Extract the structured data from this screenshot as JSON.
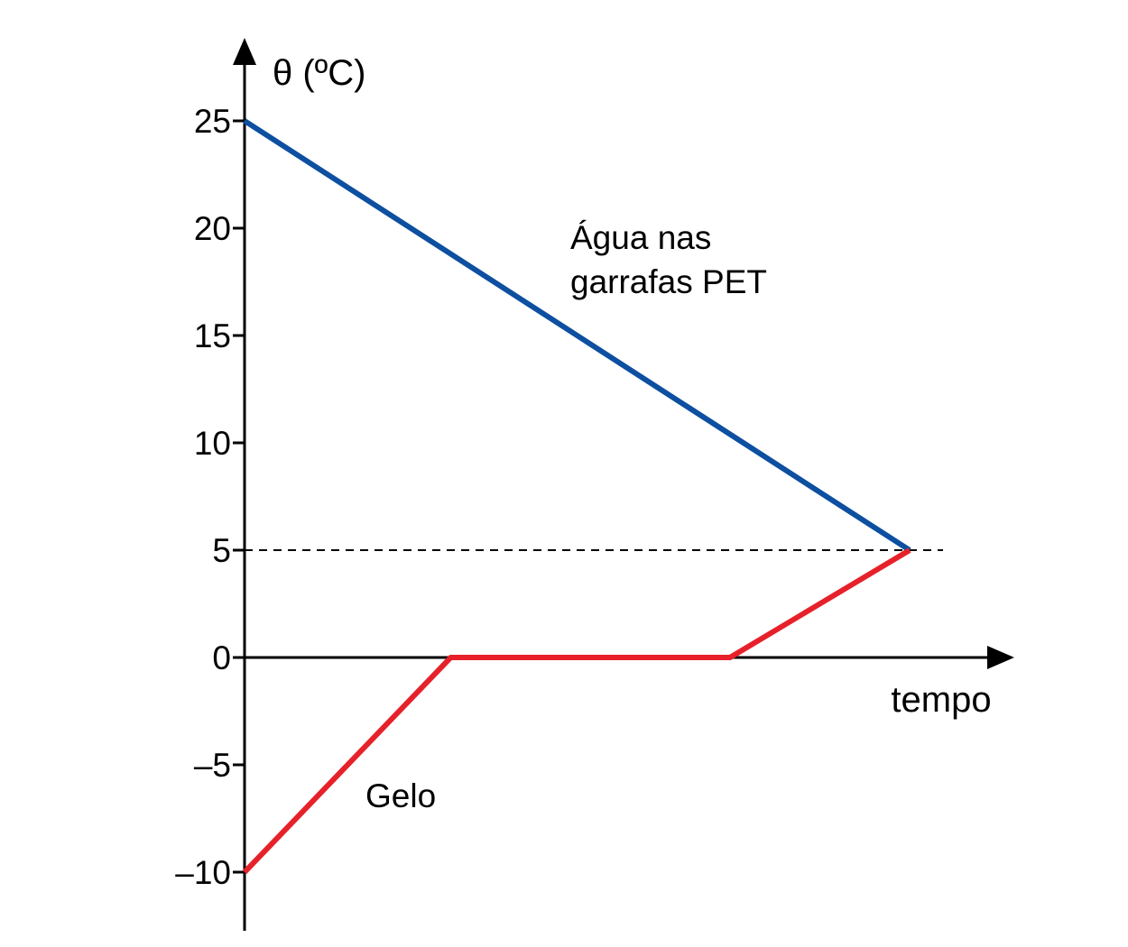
{
  "chart_data": {
    "type": "line",
    "title": "",
    "ylabel": "θ (ºC)",
    "xlabel": "tempo",
    "ylim": [
      -12,
      28
    ],
    "yticks": [
      25,
      20,
      15,
      10,
      5,
      0,
      -5,
      -10
    ],
    "ytick_labels": [
      "25",
      "20",
      "15",
      "10",
      "5",
      "0",
      "–5",
      "–10"
    ],
    "x_ticks_shown": false,
    "grid": false,
    "legend": "none",
    "reference_line": {
      "y": 5,
      "style": "dashed"
    },
    "series": [
      {
        "name": "Água nas garrafas PET",
        "label_lines": [
          "Água nas",
          "garrafas PET"
        ],
        "color": "#0d4fa0",
        "x": [
          0,
          1
        ],
        "y": [
          25,
          5
        ]
      },
      {
        "name": "Gelo",
        "label_lines": [
          "Gelo"
        ],
        "color": "#e6212a",
        "x": [
          0,
          0.31,
          0.73,
          1
        ],
        "y": [
          -10,
          0,
          0,
          5
        ]
      }
    ]
  }
}
